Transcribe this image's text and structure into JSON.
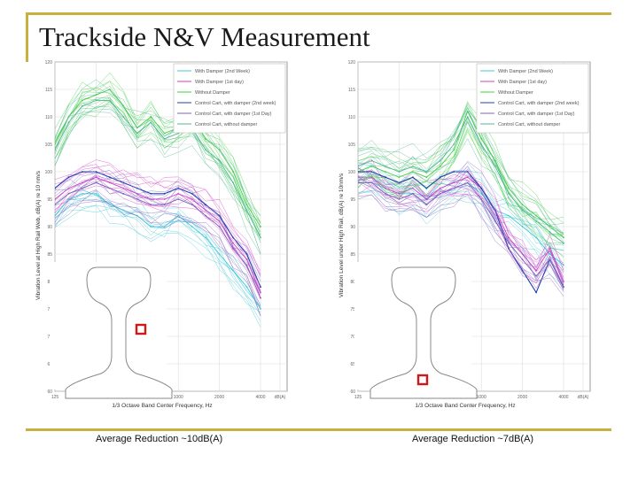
{
  "page": {
    "title": "Trackside N&V Measurement",
    "accent_color": "#c8b040"
  },
  "chart_data": [
    {
      "type": "line",
      "title": "",
      "xlabel": "1/3 Octave Band Center Frequency, Hz",
      "ylabel": "Vibration Level at High Rail Web, dB(A) re 10 nm/s",
      "caption": "Average Reduction ~10dB(A)",
      "x": [
        125,
        160,
        200,
        250,
        315,
        400,
        500,
        630,
        800,
        1000,
        1250,
        1600,
        2000,
        2500,
        3150,
        4000
      ],
      "x_ticks": [
        "125",
        "250",
        "500",
        "1000",
        "2000",
        "4000",
        "dB(A)"
      ],
      "y_ticks": [
        "60",
        "65",
        "70",
        "75",
        "80",
        "85",
        "90",
        "95",
        "100",
        "105",
        "110",
        "115",
        "120"
      ],
      "ylim": [
        60,
        120
      ],
      "grid": true,
      "legend_position": "top-right",
      "series": [
        {
          "name": "With Damper (2nd Week)",
          "color": "#40c8d8",
          "values": [
            92,
            95,
            96,
            96,
            94,
            93,
            92,
            90,
            90,
            92,
            90,
            88,
            85,
            82,
            79,
            75
          ]
        },
        {
          "name": "With Damper (1st day)",
          "color": "#d040c8",
          "values": [
            95,
            97,
            98,
            99,
            98,
            97,
            96,
            95,
            95,
            96,
            95,
            93,
            91,
            87,
            84,
            78
          ]
        },
        {
          "name": "Without Damper",
          "color": "#40d040",
          "values": [
            105,
            110,
            113,
            114,
            115,
            112,
            108,
            110,
            107,
            108,
            110,
            106,
            104,
            100,
            94,
            90
          ]
        },
        {
          "name": "Control Cart, with damper (2nd week)",
          "color": "#2040b0",
          "values": [
            97,
            99,
            100,
            100,
            99,
            98,
            97,
            96,
            96,
            97,
            96,
            94,
            92,
            88,
            85,
            79
          ]
        },
        {
          "name": "Control Cart, with damper (1st Day)",
          "color": "#8060c0",
          "values": [
            94,
            96,
            97,
            98,
            97,
            96,
            95,
            94,
            94,
            95,
            94,
            92,
            90,
            86,
            83,
            77
          ]
        },
        {
          "name": "Control Cart, without damper",
          "color": "#50b890",
          "values": [
            104,
            109,
            112,
            113,
            113,
            110,
            107,
            109,
            106,
            107,
            108,
            104,
            102,
            98,
            93,
            88
          ]
        }
      ]
    },
    {
      "type": "line",
      "title": "",
      "xlabel": "1/3 Octave Band Center Frequency, Hz",
      "ylabel": "Vibration Level under High Rail, dB(A) re 10nm/s",
      "caption": "Average Reduction ~7dB(A)",
      "x": [
        125,
        160,
        200,
        250,
        315,
        400,
        500,
        630,
        800,
        1000,
        1250,
        1600,
        2000,
        2500,
        3150,
        4000
      ],
      "x_ticks": [
        "125",
        "250",
        "500",
        "1000",
        "2000",
        "4000",
        "dB(A)"
      ],
      "y_ticks": [
        "60",
        "65",
        "70",
        "75",
        "80",
        "85",
        "90",
        "95",
        "100",
        "105",
        "110",
        "115",
        "120"
      ],
      "ylim": [
        60,
        120
      ],
      "grid": true,
      "legend_position": "top-right",
      "series": [
        {
          "name": "With Damper (2nd Week)",
          "color": "#40c8d8",
          "values": [
            98,
            98,
            97,
            96,
            96,
            94,
            96,
            97,
            98,
            96,
            93,
            92,
            90,
            88,
            85,
            83
          ]
        },
        {
          "name": "With Damper (1st day)",
          "color": "#d040c8",
          "values": [
            99,
            99,
            97,
            96,
            97,
            95,
            97,
            98,
            99,
            97,
            93,
            88,
            85,
            82,
            86,
            80
          ]
        },
        {
          "name": "Without Damper",
          "color": "#40d040",
          "values": [
            100,
            101,
            100,
            99,
            100,
            99,
            101,
            104,
            111,
            106,
            102,
            97,
            94,
            92,
            90,
            88
          ]
        },
        {
          "name": "Control Cart, with damper (2nd week)",
          "color": "#2040b0",
          "values": [
            100,
            100,
            99,
            98,
            99,
            97,
            99,
            100,
            100,
            97,
            93,
            86,
            82,
            78,
            84,
            79
          ]
        },
        {
          "name": "Control Cart, with damper (1st Day)",
          "color": "#8060c0",
          "values": [
            98,
            98,
            96,
            95,
            96,
            94,
            96,
            97,
            98,
            95,
            91,
            87,
            84,
            81,
            84,
            79
          ]
        },
        {
          "name": "Control Cart, without damper",
          "color": "#50b890",
          "values": [
            101,
            102,
            101,
            100,
            101,
            100,
            102,
            105,
            110,
            105,
            101,
            96,
            93,
            91,
            89,
            87
          ]
        }
      ]
    }
  ]
}
